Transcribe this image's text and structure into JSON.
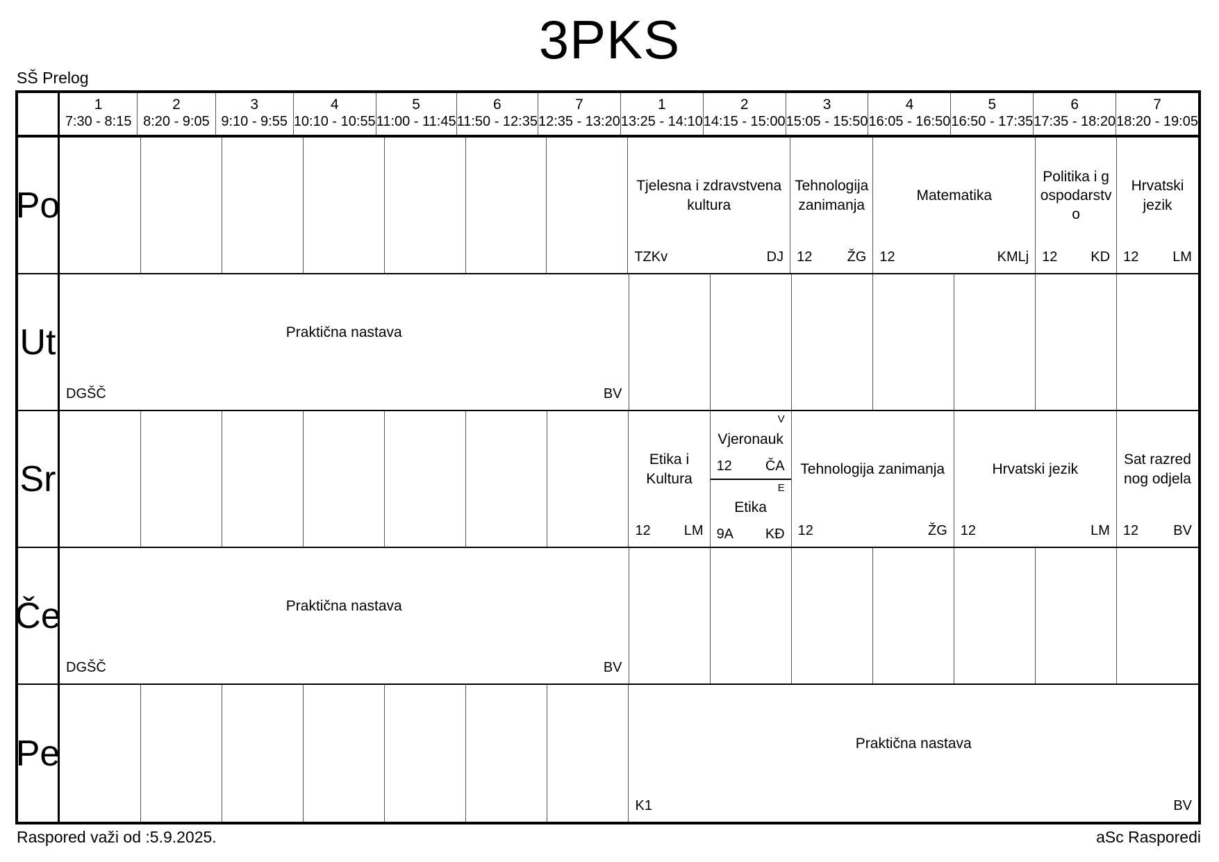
{
  "title": "3PKS",
  "school": "SŠ Prelog",
  "days": [
    "Po",
    "Ut",
    "Sr",
    "Če",
    "Pe"
  ],
  "header": {
    "periods": [
      {
        "num": "1",
        "time": "7:30 - 8:15"
      },
      {
        "num": "2",
        "time": "8:20 - 9:05"
      },
      {
        "num": "3",
        "time": "9:10 - 9:55"
      },
      {
        "num": "4",
        "time": "10:10 - 10:55"
      },
      {
        "num": "5",
        "time": "11:00 - 11:45"
      },
      {
        "num": "6",
        "time": "11:50 - 12:35"
      },
      {
        "num": "7",
        "time": "12:35 - 13:20"
      },
      {
        "num": "1",
        "time": "13:25 - 14:10"
      },
      {
        "num": "2",
        "time": "14:15 - 15:00"
      },
      {
        "num": "3",
        "time": "15:05 - 15:50"
      },
      {
        "num": "4",
        "time": "16:05 - 16:50"
      },
      {
        "num": "5",
        "time": "16:50 - 17:35"
      },
      {
        "num": "6",
        "time": "17:35 - 18:20"
      },
      {
        "num": "7",
        "time": "18:20 - 19:05"
      }
    ]
  },
  "lessons": {
    "po_tzk": {
      "subject": "Tjelesna i zdravstvena kultura",
      "room": "TZKv",
      "teacher": "DJ"
    },
    "po_tehnologija": {
      "subject": "Tehnologija zanimanja",
      "room": "12",
      "teacher": "ŽG"
    },
    "po_matematika": {
      "subject": "Matematika",
      "room": "12",
      "teacher": "KMLj"
    },
    "po_politika": {
      "subject": "Politika i gospodarstvo",
      "room": "12",
      "teacher": "KD"
    },
    "po_hrvatski": {
      "subject": "Hrvatski jezik",
      "room": "12",
      "teacher": "LM"
    },
    "ut_prakticna": {
      "subject": "Praktična nastava",
      "room": "DGŠČ",
      "teacher": "BV"
    },
    "sr_etika_kultura": {
      "subject": "Etika i Kultura",
      "room": "12",
      "teacher": "LM"
    },
    "sr_vjeronauk": {
      "marker": "V",
      "subject": "Vjeronauk",
      "room": "12",
      "teacher": "ČA"
    },
    "sr_etika": {
      "marker": "E",
      "subject": "Etika",
      "room": "9A",
      "teacher": "KĐ"
    },
    "sr_tehnologija": {
      "subject": "Tehnologija zanimanja",
      "room": "12",
      "teacher": "ŽG"
    },
    "sr_hrvatski": {
      "subject": "Hrvatski jezik",
      "room": "12",
      "teacher": "LM"
    },
    "sr_sat_razrednog": {
      "subject": "Sat razrednog odjela",
      "room": "12",
      "teacher": "BV"
    },
    "ce_prakticna": {
      "subject": "Praktična nastava",
      "room": "DGŠČ",
      "teacher": "BV"
    },
    "pe_prakticna": {
      "subject": "Praktična nastava",
      "room": "K1",
      "teacher": "BV"
    }
  },
  "footer": {
    "valid_from": "Raspored važi od :5.9.2025.",
    "brand": "aSc Rasporedi"
  }
}
